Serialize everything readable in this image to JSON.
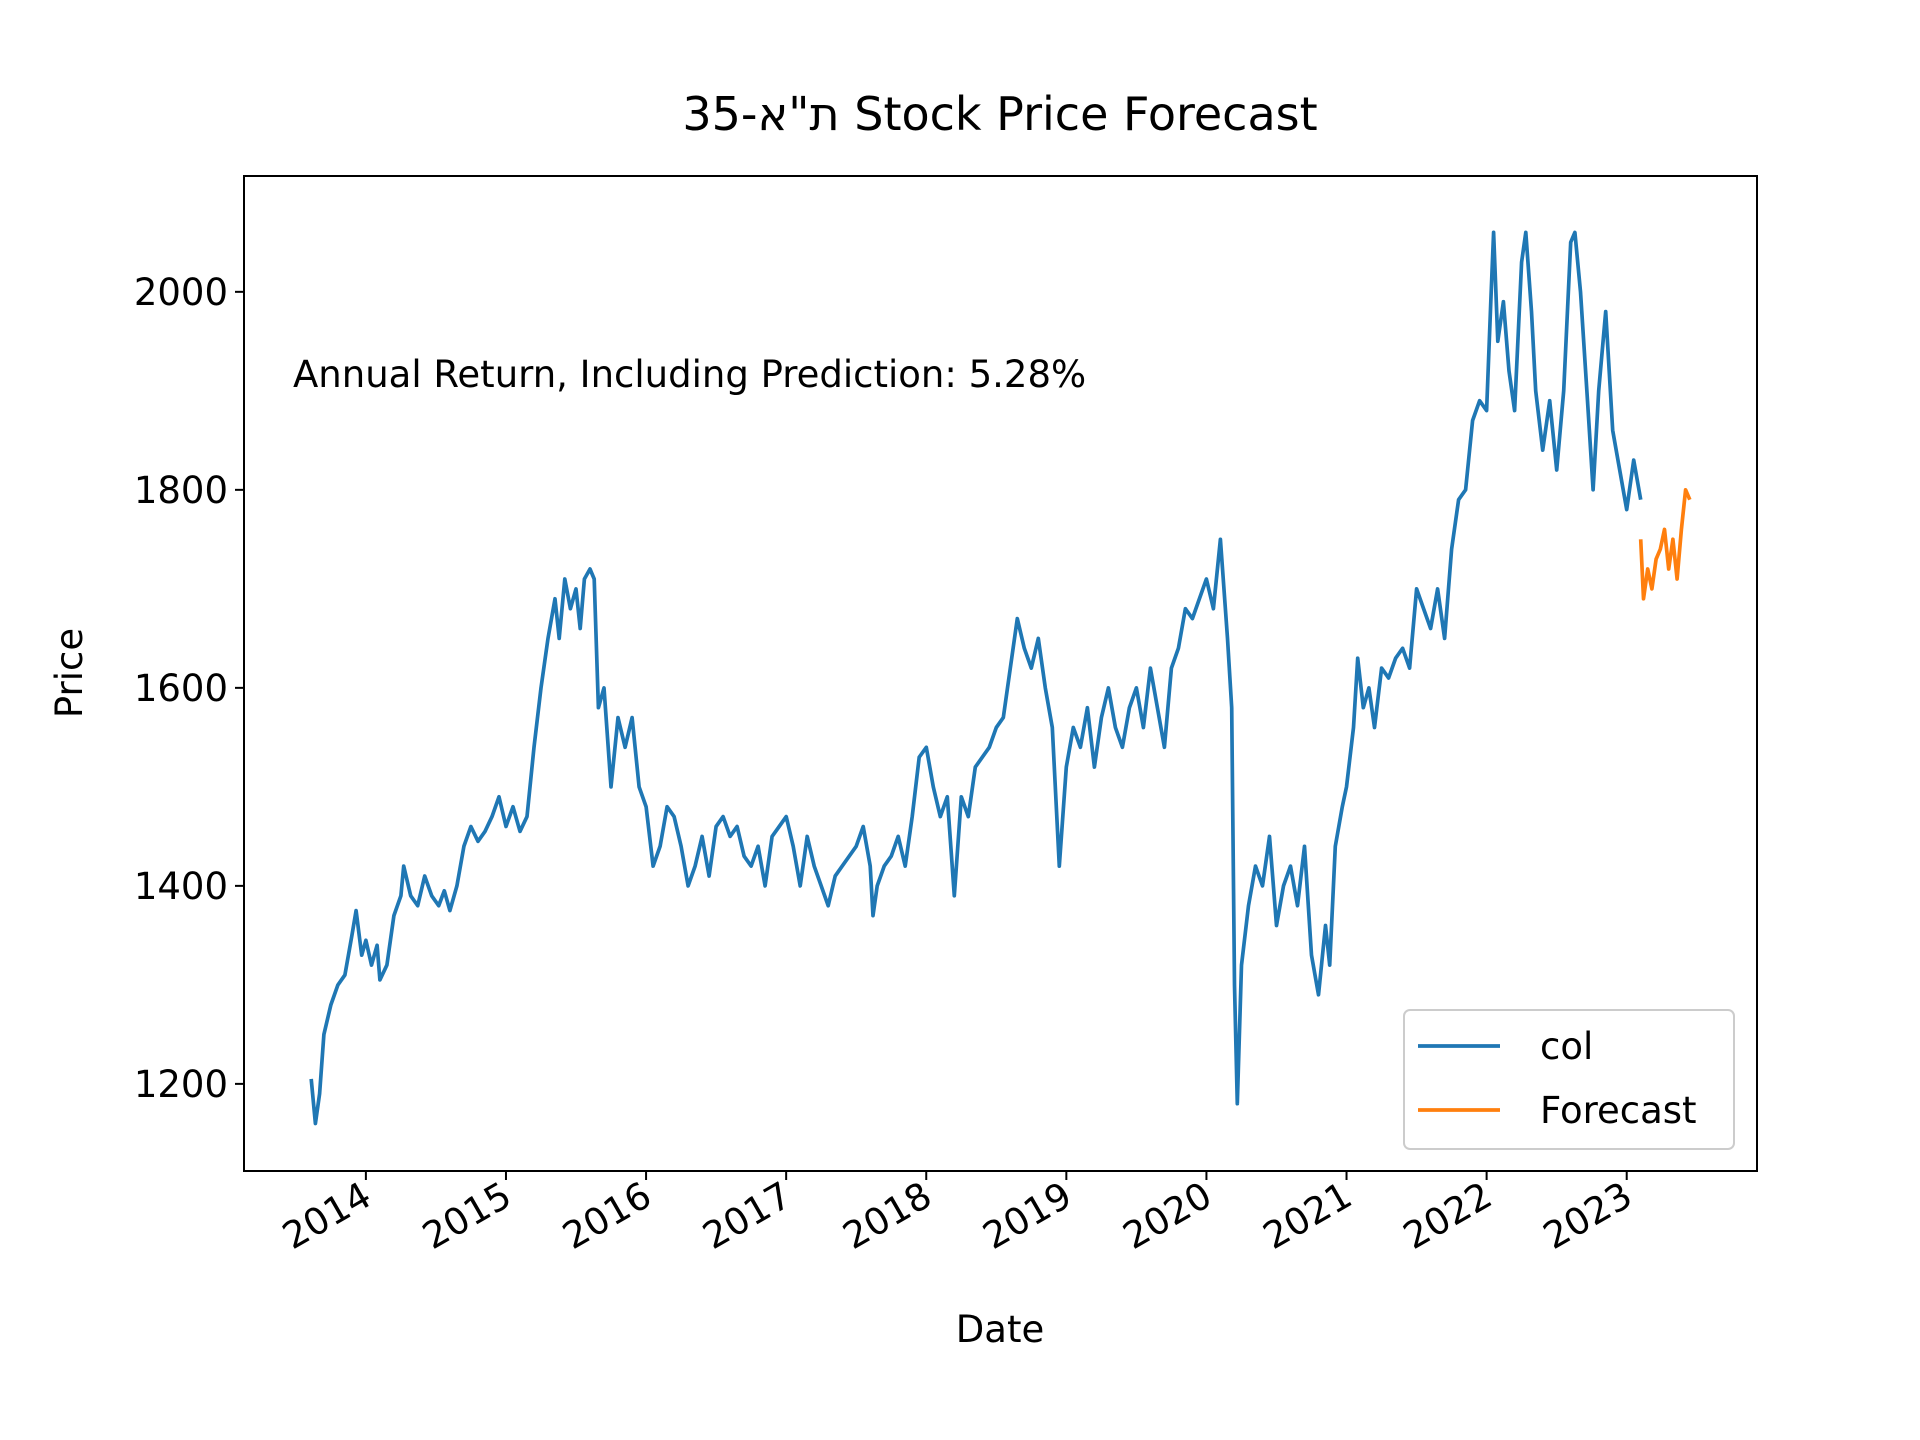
{
  "chart_data": {
    "type": "line",
    "title": "ת\"א-35 Stock Price Forecast",
    "xlabel": "Date",
    "ylabel": "Price",
    "annotation": "Annual Return, Including Prediction: 5.28%",
    "xlim": [
      2013.13,
      2023.93
    ],
    "xticks": [
      2014,
      2015,
      2016,
      2017,
      2018,
      2019,
      2020,
      2021,
      2022,
      2023
    ],
    "ylim": [
      1112,
      2117
    ],
    "yticks": [
      1200,
      1400,
      1600,
      1800,
      2000
    ],
    "legend": "lower right",
    "grid": false,
    "series": [
      {
        "name": "col",
        "color": "#1f77b4",
        "x": [
          2013.61,
          2013.64,
          2013.67,
          2013.7,
          2013.75,
          2013.8,
          2013.85,
          2013.9,
          2013.93,
          2013.97,
          2014,
          2014.04,
          2014.08,
          2014.1,
          2014.15,
          2014.2,
          2014.25,
          2014.27,
          2014.32,
          2014.37,
          2014.42,
          2014.47,
          2014.52,
          2014.56,
          2014.6,
          2014.65,
          2014.7,
          2014.75,
          2014.8,
          2014.85,
          2014.9,
          2014.95,
          2015,
          2015.05,
          2015.1,
          2015.15,
          2015.2,
          2015.25,
          2015.3,
          2015.35,
          2015.38,
          2015.42,
          2015.46,
          2015.5,
          2015.53,
          2015.56,
          2015.6,
          2015.63,
          2015.66,
          2015.7,
          2015.75,
          2015.8,
          2015.85,
          2015.9,
          2015.95,
          2016,
          2016.05,
          2016.1,
          2016.15,
          2016.2,
          2016.25,
          2016.3,
          2016.35,
          2016.4,
          2016.45,
          2016.5,
          2016.55,
          2016.6,
          2016.65,
          2016.7,
          2016.75,
          2016.8,
          2016.85,
          2016.9,
          2016.95,
          2017,
          2017.05,
          2017.1,
          2017.15,
          2017.2,
          2017.25,
          2017.3,
          2017.35,
          2017.4,
          2017.45,
          2017.5,
          2017.55,
          2017.6,
          2017.62,
          2017.65,
          2017.7,
          2017.75,
          2017.8,
          2017.85,
          2017.9,
          2017.95,
          2018,
          2018.05,
          2018.1,
          2018.15,
          2018.2,
          2018.25,
          2018.3,
          2018.35,
          2018.4,
          2018.45,
          2018.5,
          2018.55,
          2018.6,
          2018.65,
          2018.7,
          2018.75,
          2018.8,
          2018.85,
          2018.9,
          2018.95,
          2019,
          2019.05,
          2019.1,
          2019.15,
          2019.2,
          2019.25,
          2019.3,
          2019.35,
          2019.4,
          2019.45,
          2019.5,
          2019.55,
          2019.6,
          2019.65,
          2019.7,
          2019.75,
          2019.8,
          2019.85,
          2019.9,
          2019.95,
          2020,
          2020.05,
          2020.1,
          2020.15,
          2020.18,
          2020.2,
          2020.22,
          2020.25,
          2020.3,
          2020.35,
          2020.4,
          2020.45,
          2020.5,
          2020.55,
          2020.6,
          2020.65,
          2020.7,
          2020.75,
          2020.8,
          2020.85,
          2020.88,
          2020.92,
          2020.97,
          2021,
          2021.05,
          2021.08,
          2021.12,
          2021.16,
          2021.2,
          2021.25,
          2021.3,
          2021.35,
          2021.4,
          2021.45,
          2021.5,
          2021.55,
          2021.6,
          2021.65,
          2021.7,
          2021.75,
          2021.8,
          2021.85,
          2021.9,
          2021.95,
          2022,
          2022.03,
          2022.05,
          2022.08,
          2022.12,
          2022.16,
          2022.2,
          2022.25,
          2022.28,
          2022.32,
          2022.35,
          2022.4,
          2022.45,
          2022.5,
          2022.55,
          2022.6,
          2022.63,
          2022.67,
          2022.72,
          2022.76,
          2022.8,
          2022.85,
          2022.9,
          2022.95,
          2023,
          2023.05,
          2023.1
        ],
        "values": [
          1205,
          1160,
          1190,
          1250,
          1280,
          1300,
          1310,
          1350,
          1375,
          1330,
          1345,
          1320,
          1340,
          1305,
          1320,
          1370,
          1390,
          1420,
          1390,
          1380,
          1410,
          1390,
          1380,
          1395,
          1375,
          1400,
          1440,
          1460,
          1445,
          1455,
          1470,
          1490,
          1460,
          1480,
          1455,
          1470,
          1540,
          1600,
          1650,
          1690,
          1650,
          1710,
          1680,
          1700,
          1660,
          1710,
          1720,
          1710,
          1580,
          1600,
          1500,
          1570,
          1540,
          1570,
          1500,
          1480,
          1420,
          1440,
          1480,
          1470,
          1440,
          1400,
          1420,
          1450,
          1410,
          1460,
          1470,
          1450,
          1460,
          1430,
          1420,
          1440,
          1400,
          1450,
          1460,
          1470,
          1440,
          1400,
          1450,
          1420,
          1400,
          1380,
          1410,
          1420,
          1430,
          1440,
          1460,
          1420,
          1370,
          1400,
          1420,
          1430,
          1450,
          1420,
          1470,
          1530,
          1540,
          1500,
          1470,
          1490,
          1390,
          1490,
          1470,
          1520,
          1530,
          1540,
          1560,
          1570,
          1620,
          1670,
          1640,
          1620,
          1650,
          1600,
          1560,
          1420,
          1520,
          1560,
          1540,
          1580,
          1520,
          1570,
          1600,
          1560,
          1540,
          1580,
          1600,
          1560,
          1620,
          1580,
          1540,
          1620,
          1640,
          1680,
          1670,
          1690,
          1710,
          1680,
          1750,
          1650,
          1580,
          1300,
          1180,
          1320,
          1380,
          1420,
          1400,
          1450,
          1360,
          1400,
          1420,
          1380,
          1440,
          1330,
          1290,
          1360,
          1320,
          1440,
          1480,
          1500,
          1560,
          1630,
          1580,
          1600,
          1560,
          1620,
          1610,
          1630,
          1640,
          1620,
          1700,
          1680,
          1660,
          1700,
          1650,
          1740,
          1790,
          1800,
          1870,
          1890,
          1880,
          1990,
          2060,
          1950,
          1990,
          1920,
          1880,
          2030,
          2060,
          1980,
          1900,
          1840,
          1890,
          1820,
          1900,
          2050,
          2060,
          2000,
          1890,
          1800,
          1900,
          1980,
          1860,
          1820,
          1780,
          1830,
          1790
        ]
      },
      {
        "name": "Forecast",
        "color": "#ff7f0e",
        "x": [
          2023.1,
          2023.12,
          2023.15,
          2023.18,
          2023.21,
          2023.24,
          2023.27,
          2023.3,
          2023.33,
          2023.36,
          2023.39,
          2023.42,
          2023.45
        ],
        "values": [
          1750,
          1690,
          1720,
          1700,
          1730,
          1740,
          1760,
          1720,
          1750,
          1710,
          1760,
          1800,
          1790
        ]
      }
    ]
  }
}
